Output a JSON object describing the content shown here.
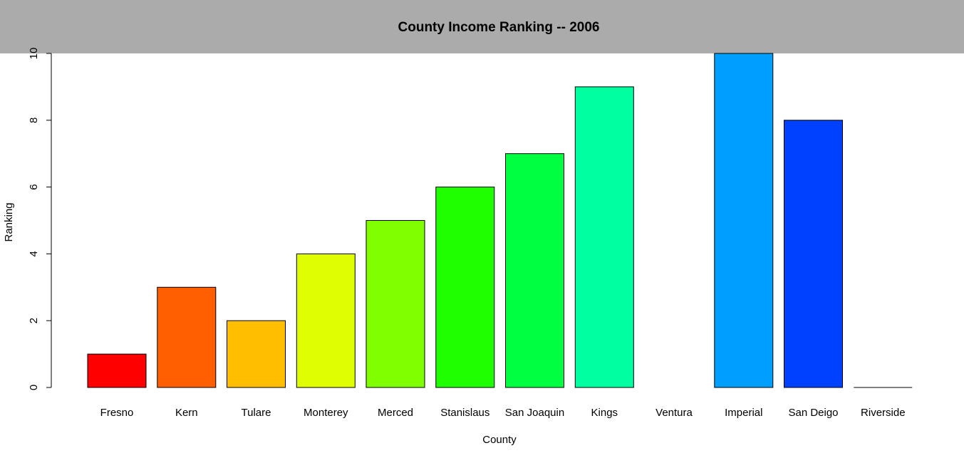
{
  "chart_data": {
    "type": "bar",
    "title": "County Income Ranking -- 2006",
    "xlabel": "County",
    "ylabel": "Ranking",
    "categories": [
      "Fresno",
      "Kern",
      "Tulare",
      "Monterey",
      "Merced",
      "Stanislaus",
      "San Joaquin",
      "Kings",
      "Ventura",
      "Imperial",
      "San Deigo",
      "Riverside"
    ],
    "values": [
      1,
      3,
      2,
      4,
      5,
      6,
      7,
      9,
      0,
      10,
      8,
      0
    ],
    "colors": [
      "#FF0000",
      "#FF5F00",
      "#FFBF00",
      "#DFFF00",
      "#80FF00",
      "#20FF00",
      "#00FF40",
      "#00FF9F",
      "#00FFFF",
      "#009FFF",
      "#0040FF",
      "#2000FF"
    ],
    "ylim": [
      0,
      10
    ],
    "yticks": [
      0,
      2,
      4,
      6,
      8,
      10
    ],
    "header_color": "#ABABAB",
    "grid": false,
    "legend": "none"
  }
}
